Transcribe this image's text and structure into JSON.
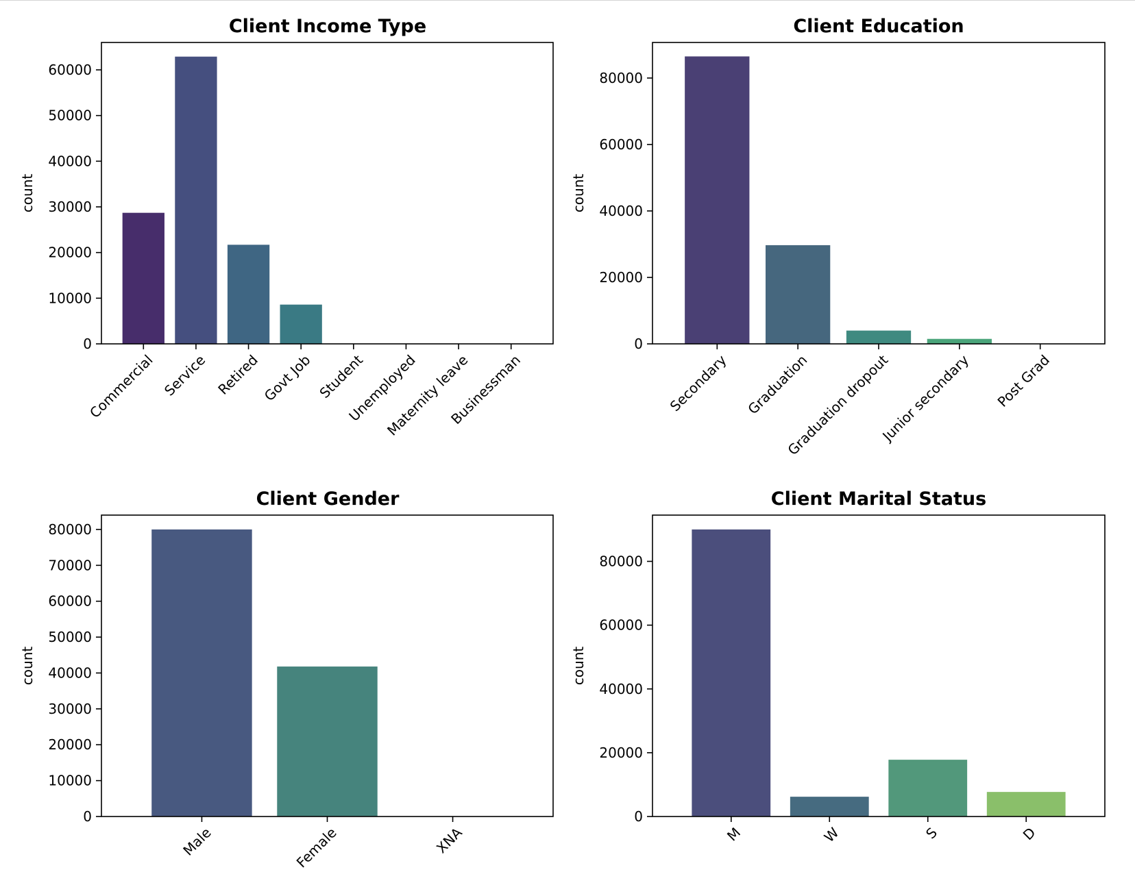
{
  "chart_data": [
    {
      "type": "bar",
      "title": "Client Income Type",
      "xlabel": "",
      "ylabel": "count",
      "ylim": [
        0,
        66000
      ],
      "yticks": [
        0,
        10000,
        20000,
        30000,
        40000,
        50000,
        60000
      ],
      "categories": [
        "Commercial",
        "Service",
        "Retired",
        "Govt Job",
        "Student",
        "Unemployed",
        "Maternity leave",
        "Businessman"
      ],
      "values": [
        28700,
        62900,
        21700,
        8600,
        10,
        10,
        2,
        2
      ],
      "colors": [
        "#472d6b",
        "#454f7f",
        "#3f6683",
        "#3a7a84",
        "#2e9282",
        "#35ab7a",
        "#67c15f",
        "#9fd542"
      ],
      "grid": false,
      "tick_rotation": 45
    },
    {
      "type": "bar",
      "title": "Client Education",
      "xlabel": "",
      "ylabel": "count",
      "ylim": [
        0,
        90700
      ],
      "yticks": [
        0,
        20000,
        40000,
        60000,
        80000
      ],
      "categories": [
        "Secondary",
        "Graduation",
        "Graduation dropout",
        "Junior secondary",
        "Post Grad"
      ],
      "values": [
        86500,
        29700,
        4000,
        1500,
        60
      ],
      "colors": [
        "#4a4074",
        "#46677e",
        "#3f8a80",
        "#4aa47a",
        "#76bb5f"
      ],
      "grid": false,
      "tick_rotation": 45
    },
    {
      "type": "bar",
      "title": "Client Gender",
      "xlabel": "",
      "ylabel": "count",
      "ylim": [
        0,
        84000
      ],
      "yticks": [
        0,
        10000,
        20000,
        30000,
        40000,
        50000,
        60000,
        70000,
        80000
      ],
      "categories": [
        "Male",
        "Female",
        "XNA"
      ],
      "values": [
        80000,
        41800,
        2
      ],
      "colors": [
        "#485980",
        "#46847d",
        "#78c05c"
      ],
      "grid": false,
      "tick_rotation": 45
    },
    {
      "type": "bar",
      "title": "Client Marital Status",
      "xlabel": "",
      "ylabel": "count",
      "ylim": [
        0,
        94500
      ],
      "yticks": [
        0,
        20000,
        40000,
        60000,
        80000
      ],
      "categories": [
        "M",
        "W",
        "S",
        "D"
      ],
      "values": [
        90000,
        6200,
        17800,
        7700
      ],
      "colors": [
        "#4b4e7c",
        "#466b80",
        "#52987b",
        "#8abf6a"
      ],
      "grid": false,
      "tick_rotation": 45
    }
  ]
}
